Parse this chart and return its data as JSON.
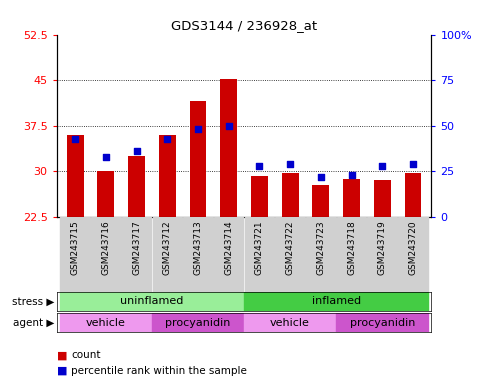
{
  "title": "GDS3144 / 236928_at",
  "samples": [
    "GSM243715",
    "GSM243716",
    "GSM243717",
    "GSM243712",
    "GSM243713",
    "GSM243714",
    "GSM243721",
    "GSM243722",
    "GSM243723",
    "GSM243718",
    "GSM243719",
    "GSM243720"
  ],
  "counts": [
    36.0,
    30.1,
    32.5,
    36.0,
    41.5,
    45.2,
    29.3,
    29.8,
    27.8,
    28.8,
    28.6,
    29.8
  ],
  "percentile": [
    43,
    33,
    36,
    43,
    48,
    50,
    28,
    29,
    22,
    23,
    28,
    29
  ],
  "ylim_left": [
    22.5,
    52.5
  ],
  "ylim_right": [
    0,
    100
  ],
  "yticks_left": [
    22.5,
    30,
    37.5,
    45,
    52.5
  ],
  "yticks_right": [
    0,
    25,
    50,
    75,
    100
  ],
  "bar_color": "#cc0000",
  "dot_color": "#0000cc",
  "stress_groups": [
    {
      "label": "uninflamed",
      "start": 0,
      "end": 6,
      "color": "#99ee99"
    },
    {
      "label": "inflamed",
      "start": 6,
      "end": 12,
      "color": "#44cc44"
    }
  ],
  "agent_groups": [
    {
      "label": "vehicle",
      "start": 0,
      "end": 3,
      "color": "#ee99ee"
    },
    {
      "label": "procyanidin",
      "start": 3,
      "end": 6,
      "color": "#cc55cc"
    },
    {
      "label": "vehicle",
      "start": 6,
      "end": 9,
      "color": "#ee99ee"
    },
    {
      "label": "procyanidin",
      "start": 9,
      "end": 12,
      "color": "#cc55cc"
    }
  ],
  "legend_items": [
    {
      "label": "count",
      "color": "#cc0000"
    },
    {
      "label": "percentile rank within the sample",
      "color": "#0000cc"
    }
  ],
  "tick_label_fontsize": 6.5,
  "bar_width": 0.55
}
